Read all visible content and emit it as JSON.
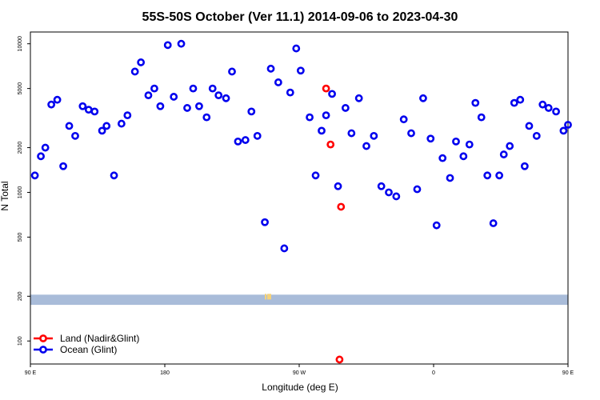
{
  "chart_data": {
    "type": "scatter",
    "title": "55S-50S October (Ver 11.1)   2014-09-06 to 2023-04-30",
    "xlabel": "Longitude (deg E)",
    "ylabel": "N Total",
    "xlim": [
      90,
      450
    ],
    "ylim": [
      70,
      12000
    ],
    "y_scale": "log",
    "x_ticks": [
      {
        "value": 90,
        "label": "90 E"
      },
      {
        "value": 180,
        "label": "180"
      },
      {
        "value": 270,
        "label": "90 W"
      },
      {
        "value": 360,
        "label": "0"
      },
      {
        "value": 450,
        "label": "90 E"
      },
      {
        "value": 540,
        "label": "180"
      }
    ],
    "y_ticks": [
      {
        "value": 100,
        "label": "100"
      },
      {
        "value": 200,
        "label": "200"
      },
      {
        "value": 500,
        "label": "500"
      },
      {
        "value": 1000,
        "label": "1000"
      },
      {
        "value": 2000,
        "label": "2000"
      },
      {
        "value": 5000,
        "label": "5000"
      },
      {
        "value": 10000,
        "label": "10000"
      }
    ],
    "band": {
      "y_from": 175,
      "y_to": 205,
      "color": "#a9bcd9"
    },
    "legend_position": "bottom-left",
    "series": [
      {
        "name": "Land (Nadir&Glint)",
        "color": "#ff0000",
        "x": [
          288,
          291,
          298,
          297
        ],
        "y": [
          5000,
          2100,
          800,
          75
        ]
      },
      {
        "name": "Ocean (Glint)",
        "color": "#0000ee",
        "x": [
          93,
          97,
          100,
          104,
          108,
          112,
          116,
          120,
          125,
          129,
          133,
          138,
          141,
          146,
          151,
          155,
          160,
          164,
          169,
          173,
          177,
          182,
          186,
          191,
          195,
          199,
          203,
          208,
          212,
          216,
          221,
          225,
          229,
          234,
          238,
          242,
          247,
          251,
          256,
          260,
          264,
          268,
          271,
          277,
          281,
          285,
          288,
          292,
          296,
          301,
          305,
          310,
          315,
          320,
          325,
          330,
          335,
          340,
          345,
          349,
          353,
          358,
          362,
          366,
          371,
          375,
          380,
          384,
          388,
          392,
          396,
          400,
          404,
          407,
          411,
          414,
          418,
          421,
          424,
          429,
          433,
          437,
          442,
          447,
          450
        ],
        "y": [
          1300,
          1750,
          2000,
          3900,
          4200,
          1500,
          2800,
          2400,
          3800,
          3600,
          3500,
          2600,
          2800,
          1300,
          2900,
          3300,
          6500,
          7500,
          4500,
          5000,
          3800,
          9800,
          4400,
          10000,
          3700,
          5000,
          3800,
          3200,
          5000,
          4500,
          4300,
          6500,
          2200,
          2250,
          3500,
          2400,
          630,
          6800,
          5500,
          420,
          4700,
          9300,
          6600,
          3200,
          1300,
          2600,
          3300,
          4600,
          1100,
          3700,
          2500,
          4300,
          2050,
          2400,
          1100,
          1000,
          940,
          3100,
          2500,
          1050,
          4300,
          2300,
          600,
          1700,
          1250,
          2200,
          1750,
          2100,
          4000,
          3200,
          1300,
          620,
          1300,
          1800,
          2050,
          4000,
          4200,
          1500,
          2800,
          2400,
          3900,
          3700,
          3500,
          2600,
          2850
        ]
      }
    ]
  }
}
